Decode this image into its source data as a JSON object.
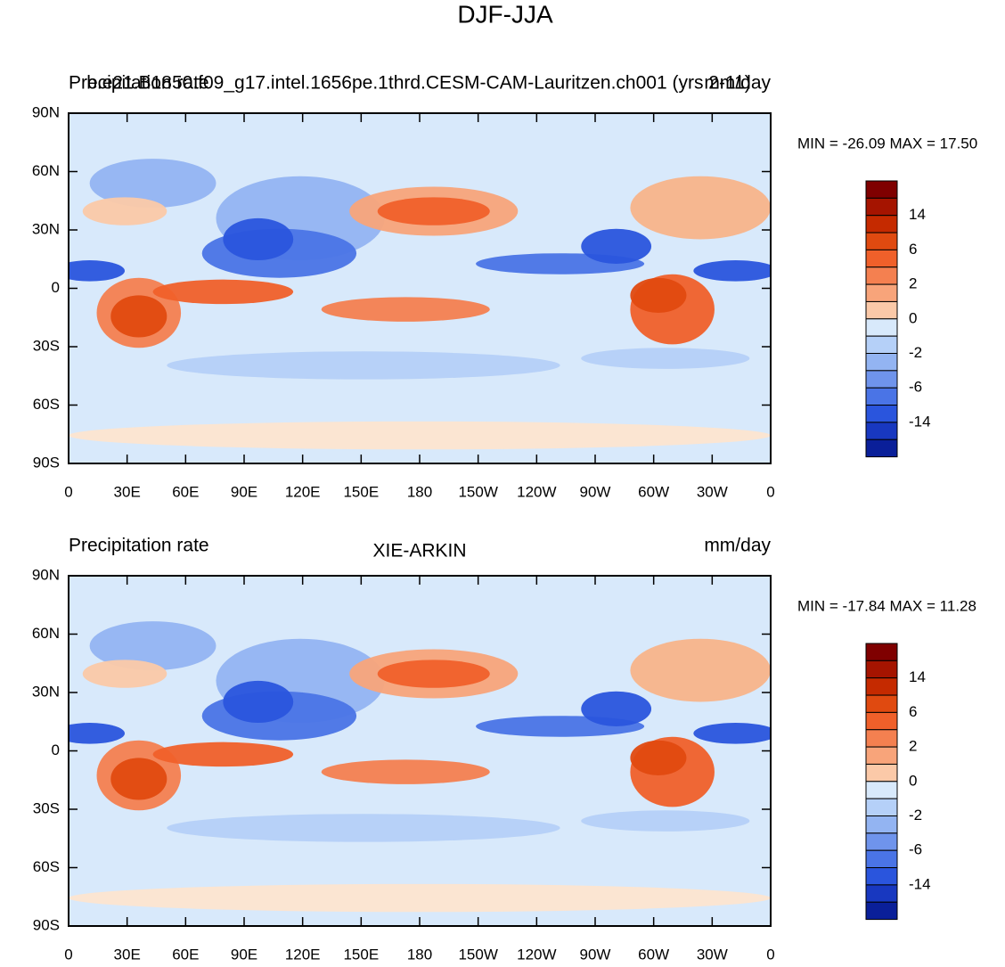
{
  "title": "DJF-JJA",
  "panels": [
    {
      "left_string": "Precipitation rate",
      "center_string": "b.e21.B1850.f09_g17.intel.1656pe.1thrd.CESM-CAM-Lauritzen.ch001 (yrs 2-11)",
      "right_string": "mm/day",
      "min_max": "MIN = -26.09 MAX =  17.50",
      "y_labels": [
        "90N",
        "60N",
        "30N",
        "0",
        "30S",
        "60S",
        "90S"
      ],
      "x_labels": [
        "0",
        "30E",
        "60E",
        "90E",
        "120E",
        "150E",
        "180",
        "150W",
        "120W",
        "90W",
        "60W",
        "30W",
        "0"
      ],
      "colorbar_labels": [
        "14",
        "6",
        "2",
        "0",
        "-2",
        "-6",
        "-14"
      ]
    },
    {
      "left_string": "Precipitation rate",
      "center_string": "XIE-ARKIN",
      "right_string": "mm/day",
      "min_max": "MIN = -17.84 MAX =  11.28",
      "y_labels": [
        "90N",
        "60N",
        "30N",
        "0",
        "30S",
        "60S",
        "90S"
      ],
      "x_labels": [
        "0",
        "30E",
        "60E",
        "90E",
        "120E",
        "150E",
        "180",
        "150W",
        "120W",
        "90W",
        "60W",
        "30W",
        "0"
      ],
      "colorbar_labels": [
        "14",
        "6",
        "2",
        "0",
        "-2",
        "-6",
        "-14"
      ]
    }
  ]
}
